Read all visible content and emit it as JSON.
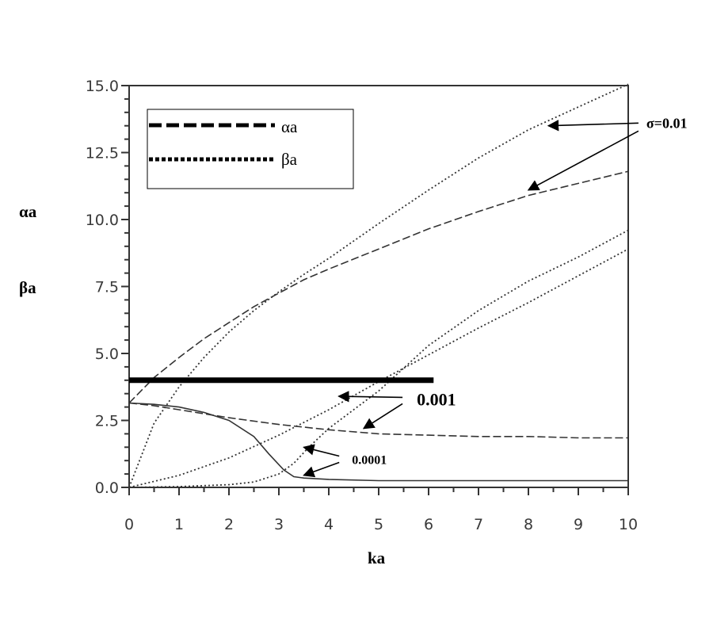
{
  "chart_data": {
    "type": "line",
    "title": "",
    "xlabel": "ka",
    "ylabel": [
      "αa",
      "βa"
    ],
    "xlim": [
      0,
      10
    ],
    "ylim": [
      0,
      15
    ],
    "x_ticks": [
      "0",
      "1",
      "2",
      "3",
      "4",
      "5",
      "6",
      "7",
      "8",
      "9",
      "10"
    ],
    "y_ticks": [
      "0.0",
      "2.5",
      "5.0",
      "7.5",
      "10.0",
      "12.5",
      "15.0"
    ],
    "legend": {
      "placement": "top-left",
      "entries": [
        {
          "label": "αa",
          "style": "dashed"
        },
        {
          "label": "βa",
          "style": "dotted"
        }
      ]
    },
    "series": [
      {
        "sigma": "0.01",
        "quantity": "αa",
        "style": "dashed",
        "x": [
          0,
          0.5,
          1,
          1.5,
          2,
          2.5,
          3,
          3.5,
          4,
          5,
          6,
          7,
          8,
          9,
          10
        ],
        "y": [
          3.15,
          4.1,
          4.85,
          5.55,
          6.15,
          6.75,
          7.25,
          7.75,
          8.15,
          8.9,
          9.65,
          10.3,
          10.9,
          11.35,
          11.8
        ]
      },
      {
        "sigma": "0.01",
        "quantity": "βa",
        "style": "dotted",
        "x": [
          0,
          0.5,
          1,
          1.5,
          2,
          2.5,
          3,
          3.5,
          4,
          5,
          6,
          7,
          8,
          9,
          10
        ],
        "y": [
          0,
          2.4,
          3.75,
          4.85,
          5.8,
          6.6,
          7.3,
          7.95,
          8.55,
          9.85,
          11.1,
          12.3,
          13.35,
          14.2,
          15.05
        ]
      },
      {
        "sigma": "0.001",
        "quantity": "αa",
        "style": "dashed",
        "x": [
          0,
          0.5,
          1,
          2,
          3,
          4,
          5,
          6,
          7,
          8,
          9,
          10
        ],
        "y": [
          3.15,
          3.05,
          2.9,
          2.6,
          2.35,
          2.15,
          2.0,
          1.95,
          1.9,
          1.9,
          1.85,
          1.85
        ]
      },
      {
        "sigma": "0.001",
        "quantity": "βa",
        "style": "dotted",
        "x": [
          0,
          1,
          2,
          3,
          4,
          5,
          6,
          7,
          8,
          9,
          10
        ],
        "y": [
          0,
          0.45,
          1.1,
          1.95,
          2.9,
          3.95,
          4.95,
          5.95,
          6.9,
          7.9,
          8.9
        ]
      },
      {
        "sigma": "0.0001",
        "quantity": "αa",
        "style": "solid",
        "x": [
          0,
          0.5,
          1,
          1.5,
          2,
          2.5,
          2.8,
          3.1,
          3.3,
          3.5,
          4,
          5,
          6,
          7,
          8,
          9,
          10
        ],
        "y": [
          3.15,
          3.1,
          3.0,
          2.8,
          2.5,
          1.9,
          1.25,
          0.65,
          0.4,
          0.35,
          0.3,
          0.25,
          0.25,
          0.25,
          0.25,
          0.25,
          0.25
        ]
      },
      {
        "sigma": "0.0001",
        "quantity": "βa",
        "style": "dotted",
        "x": [
          0,
          1,
          2,
          2.5,
          3,
          3.3,
          3.6,
          4,
          5,
          6,
          7,
          8,
          9,
          10
        ],
        "y": [
          0,
          0.03,
          0.1,
          0.2,
          0.5,
          0.9,
          1.5,
          2.2,
          3.6,
          5.3,
          6.6,
          7.7,
          8.6,
          9.6
        ]
      }
    ],
    "reference_line": {
      "y": 4.0,
      "x": [
        0,
        6.1
      ],
      "style": "thick-solid"
    },
    "annotations": [
      {
        "text": "σ=0.01",
        "arrow_targets": [
          {
            "x": 8.4,
            "y": 13.5
          },
          {
            "x": 8.0,
            "y": 11.1
          }
        ],
        "text_at": {
          "x": 10.3,
          "y": 13.6
        }
      },
      {
        "text": "0.001",
        "arrow_targets": [
          {
            "x": 4.2,
            "y": 3.4
          },
          {
            "x": 4.7,
            "y": 2.2
          }
        ],
        "text_at": {
          "x": 5.7,
          "y": 3.3
        }
      },
      {
        "text": "0.0001",
        "arrow_targets": [
          {
            "x": 3.5,
            "y": 1.5
          },
          {
            "x": 3.5,
            "y": 0.45
          }
        ],
        "text_at": {
          "x": 4.4,
          "y": 1.05
        }
      }
    ]
  }
}
